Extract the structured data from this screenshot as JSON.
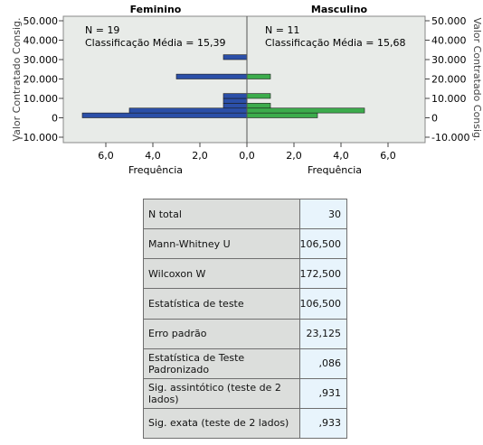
{
  "chart_data": [
    {
      "type": "bar",
      "orientation": "horizontal",
      "title": "Feminino",
      "annotation": [
        "N = 19",
        "Classificação Média = 15,39"
      ],
      "xlabel": "Frequência",
      "ylabel": "Valor Contratado Consig.",
      "x_ticks": [
        "6,0",
        "4,0",
        "2,0",
        "0,0"
      ],
      "y_ticks": [
        "50.000",
        "40.000",
        "30.000",
        "20.000",
        "10.000",
        "0",
        "-10.000"
      ],
      "xlim": [
        0,
        7
      ],
      "xaxis_reversed": true,
      "ylim": [
        -10000,
        50000
      ],
      "bin_width": 2500,
      "bins": [
        {
          "y": 0,
          "value": 7
        },
        {
          "y": 2500,
          "value": 5
        },
        {
          "y": 5000,
          "value": 1
        },
        {
          "y": 7500,
          "value": 1
        },
        {
          "y": 10000,
          "value": 1
        },
        {
          "y": 20000,
          "value": 3
        },
        {
          "y": 30000,
          "value": 1
        }
      ],
      "color": "#2b4fa8"
    },
    {
      "type": "bar",
      "orientation": "horizontal",
      "title": "Masculino",
      "annotation": [
        "N = 11",
        "Classificação Média = 15,68"
      ],
      "xlabel": "Frequência",
      "ylabel": "Valor Contratado Consig.",
      "x_ticks": [
        "0,0",
        "2,0",
        "4,0",
        "6,0"
      ],
      "y_ticks": [
        "50.000",
        "40.000",
        "30.000",
        "20.000",
        "10.000",
        "0",
        "-10.000"
      ],
      "xlim": [
        0,
        7
      ],
      "ylim": [
        -10000,
        50000
      ],
      "bin_width": 2500,
      "bins": [
        {
          "y": 0,
          "value": 3
        },
        {
          "y": 2500,
          "value": 5
        },
        {
          "y": 5000,
          "value": 1
        },
        {
          "y": 10000,
          "value": 1
        },
        {
          "y": 20000,
          "value": 1
        }
      ],
      "color": "#3cac4c"
    },
    {
      "type": "table",
      "rows": [
        [
          "N total",
          "30"
        ],
        [
          "Mann-Whitney U",
          "106,500"
        ],
        [
          "Wilcoxon W",
          "172,500"
        ],
        [
          "Estatística de teste",
          "106,500"
        ],
        [
          "Erro padrão",
          "23,125"
        ],
        [
          "Estatística de Teste Padronizado",
          ",086"
        ],
        [
          "Sig. assintótico (teste de 2 lados)",
          ",931"
        ],
        [
          "Sig.  exata (teste de 2 lados)",
          ",933"
        ]
      ]
    }
  ],
  "colors": {
    "plot_background": "#e8ebe8",
    "female_bar": "#2b4fa8",
    "male_bar": "#3cac4c"
  }
}
